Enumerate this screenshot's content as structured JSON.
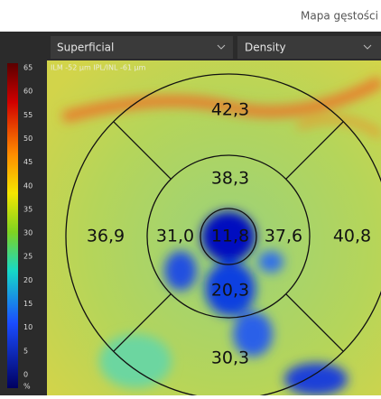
{
  "header": {
    "title": "Mapa gęstości"
  },
  "dropdowns": [
    "Superficial",
    "Density"
  ],
  "image": {
    "overlay": "ILM -52 µm  IPL/INL -61 µm"
  },
  "colorbar": {
    "labels": [
      "65",
      "60",
      "55",
      "50",
      "45",
      "40",
      "35",
      "30",
      "25",
      "20",
      "15",
      "10",
      "5",
      "0",
      "%"
    ]
  },
  "sectors": {
    "outer_top": "42,3",
    "inner_top": "38,3",
    "outer_left": "36,9",
    "inner_left": "31,0",
    "center": "11,8",
    "inner_right": "37,6",
    "outer_right": "40,8",
    "inner_bottom": "20,3",
    "outer_bottom": "30,3"
  }
}
